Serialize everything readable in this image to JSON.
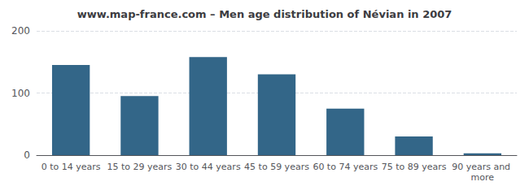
{
  "chart_data": {
    "type": "bar",
    "title": "www.map-france.com – Men age distribution of Névian in 2007",
    "categories": [
      "0 to 14 years",
      "15 to 29 years",
      "30 to 44 years",
      "45 to 59 years",
      "60 to 74 years",
      "75 to 89 years",
      "90 years and more"
    ],
    "values": [
      145,
      95,
      158,
      130,
      75,
      30,
      3
    ],
    "color": "#336688",
    "ylim": [
      0,
      200
    ],
    "yticks": [
      0,
      100,
      200
    ],
    "grid": true
  }
}
